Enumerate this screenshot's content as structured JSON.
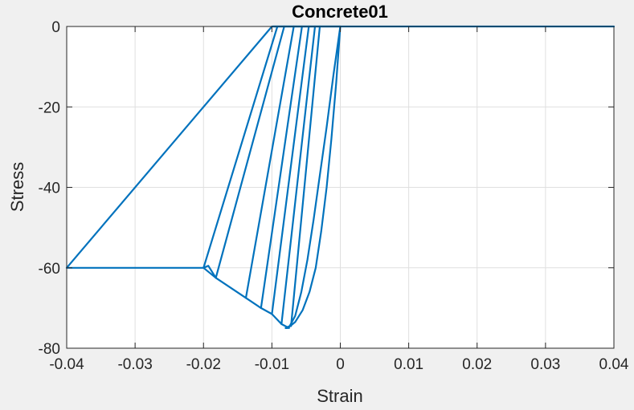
{
  "chart_data": {
    "type": "line",
    "title": "Concrete01",
    "xlabel": "Strain",
    "ylabel": "Stress",
    "xlim": [
      -0.04,
      0.04
    ],
    "ylim": [
      -80,
      0
    ],
    "xticks": [
      -0.04,
      -0.03,
      -0.02,
      -0.01,
      0,
      0.01,
      0.02,
      0.03,
      0.04
    ],
    "xtick_labels": [
      "-0.04",
      "-0.03",
      "-0.02",
      "-0.01",
      "0",
      "0.01",
      "0.02",
      "0.03",
      "0.04"
    ],
    "yticks": [
      -80,
      -60,
      -40,
      -20,
      0
    ],
    "ytick_labels": [
      "-80",
      "-60",
      "-40",
      "-20",
      "0"
    ],
    "grid": true,
    "line_color": "#0072bd",
    "series": [
      {
        "x": [
          0.04,
          0,
          -0.0006,
          -0.0013,
          -0.002,
          -0.0028,
          -0.0036,
          -0.0045,
          -0.0055,
          -0.0066,
          -0.0077,
          -0.008,
          -0.0074,
          -0.0066,
          -0.0057,
          -0.0048,
          -0.0039,
          -0.003,
          -0.002,
          -0.001,
          0,
          0.04
        ],
        "y": [
          0,
          0,
          -14,
          -28,
          -40,
          -51,
          -60,
          -66,
          -70.5,
          -73.5,
          -75,
          -75,
          -74.5,
          -72,
          -66,
          -58,
          -48,
          -37,
          -25,
          -12,
          0,
          0
        ]
      },
      {
        "x": [
          -0.0072,
          -0.003
        ],
        "y": [
          -74.5,
          0
        ]
      },
      {
        "x": [
          -0.0075,
          -0.0086,
          -0.0037
        ],
        "y": [
          -75,
          -74,
          0
        ]
      },
      {
        "x": [
          -0.0086,
          -0.01,
          -0.0046
        ],
        "y": [
          -74,
          -71.5,
          0
        ]
      },
      {
        "x": [
          -0.01,
          -0.0116,
          -0.0056
        ],
        "y": [
          -71.5,
          -70,
          0
        ]
      },
      {
        "x": [
          -0.0116,
          -0.0138,
          -0.0068
        ],
        "y": [
          -70,
          -67.5,
          0
        ]
      },
      {
        "x": [
          -0.0138,
          -0.0182,
          -0.0082
        ],
        "y": [
          -67.5,
          -62.5,
          0
        ]
      },
      {
        "x": [
          -0.0182,
          -0.02,
          -0.0092,
          -0.0098,
          0
        ],
        "y": [
          -62.5,
          -60,
          0,
          0,
          0
        ]
      },
      {
        "x": [
          0,
          -0.01,
          -0.04,
          -0.02,
          -0.0193,
          -0.0182
        ],
        "y": [
          0,
          0,
          -60,
          -60,
          -59.5,
          -62.5
        ]
      }
    ]
  }
}
